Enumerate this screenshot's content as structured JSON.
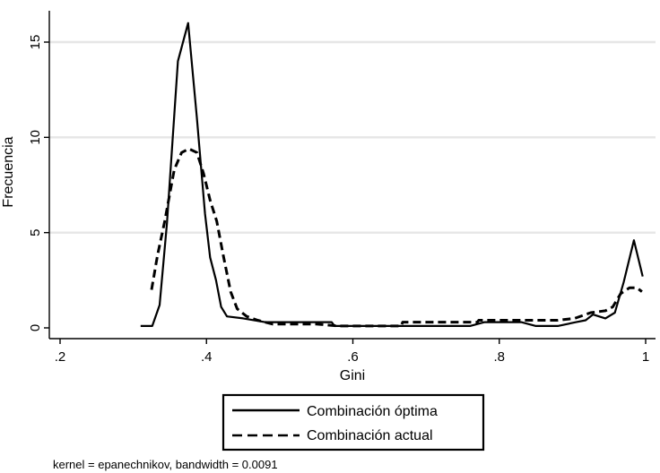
{
  "chart_data": {
    "type": "line",
    "title": "",
    "xlabel": "Gini",
    "ylabel": "Frecuencia",
    "xlim": [
      0.2,
      1.0
    ],
    "ylim": [
      0,
      16
    ],
    "xticks": [
      {
        "value": 0.2,
        "label": ".2"
      },
      {
        "value": 0.4,
        "label": ".4"
      },
      {
        "value": 0.6,
        "label": ".6"
      },
      {
        "value": 0.8,
        "label": ".8"
      },
      {
        "value": 1.0,
        "label": "1"
      }
    ],
    "yticks": [
      {
        "value": 0,
        "label": "0"
      },
      {
        "value": 5,
        "label": "5"
      },
      {
        "value": 10,
        "label": "10"
      },
      {
        "value": 15,
        "label": "15"
      }
    ],
    "grid": "horizontal",
    "legend_position": "bottom",
    "note": "kernel = epanechnikov, bandwidth = 0.0091",
    "series": [
      {
        "name": "Combinación óptima",
        "style": "solid",
        "color": "#000000",
        "points": [
          [
            0.31,
            0.1
          ],
          [
            0.326,
            0.1
          ],
          [
            0.336,
            1.2
          ],
          [
            0.346,
            5.5
          ],
          [
            0.361,
            14.0
          ],
          [
            0.375,
            16.0
          ],
          [
            0.387,
            11.0
          ],
          [
            0.398,
            6.0
          ],
          [
            0.405,
            3.7
          ],
          [
            0.413,
            2.5
          ],
          [
            0.42,
            1.1
          ],
          [
            0.428,
            0.6
          ],
          [
            0.45,
            0.5
          ],
          [
            0.48,
            0.3
          ],
          [
            0.52,
            0.3
          ],
          [
            0.571,
            0.3
          ],
          [
            0.575,
            0.1
          ],
          [
            0.76,
            0.1
          ],
          [
            0.78,
            0.3
          ],
          [
            0.83,
            0.3
          ],
          [
            0.85,
            0.1
          ],
          [
            0.88,
            0.1
          ],
          [
            0.905,
            0.3
          ],
          [
            0.918,
            0.4
          ],
          [
            0.928,
            0.7
          ],
          [
            0.945,
            0.5
          ],
          [
            0.958,
            0.8
          ],
          [
            0.97,
            2.4
          ],
          [
            0.984,
            4.6
          ],
          [
            0.996,
            2.7
          ]
        ]
      },
      {
        "name": "Combinación actual",
        "style": "dashed",
        "color": "#000000",
        "points": [
          [
            0.325,
            2.0
          ],
          [
            0.333,
            3.8
          ],
          [
            0.343,
            5.6
          ],
          [
            0.356,
            8.3
          ],
          [
            0.366,
            9.2
          ],
          [
            0.376,
            9.4
          ],
          [
            0.387,
            9.2
          ],
          [
            0.396,
            8.1
          ],
          [
            0.405,
            6.7
          ],
          [
            0.414,
            5.6
          ],
          [
            0.423,
            3.8
          ],
          [
            0.433,
            1.9
          ],
          [
            0.442,
            1.0
          ],
          [
            0.455,
            0.6
          ],
          [
            0.47,
            0.4
          ],
          [
            0.49,
            0.2
          ],
          [
            0.55,
            0.2
          ],
          [
            0.58,
            0.1
          ],
          [
            0.666,
            0.1
          ],
          [
            0.668,
            0.3
          ],
          [
            0.77,
            0.3
          ],
          [
            0.772,
            0.4
          ],
          [
            0.88,
            0.4
          ],
          [
            0.903,
            0.5
          ],
          [
            0.925,
            0.8
          ],
          [
            0.945,
            0.9
          ],
          [
            0.955,
            1.1
          ],
          [
            0.966,
            1.8
          ],
          [
            0.978,
            2.1
          ],
          [
            0.988,
            2.1
          ],
          [
            0.995,
            1.9
          ]
        ]
      }
    ]
  }
}
